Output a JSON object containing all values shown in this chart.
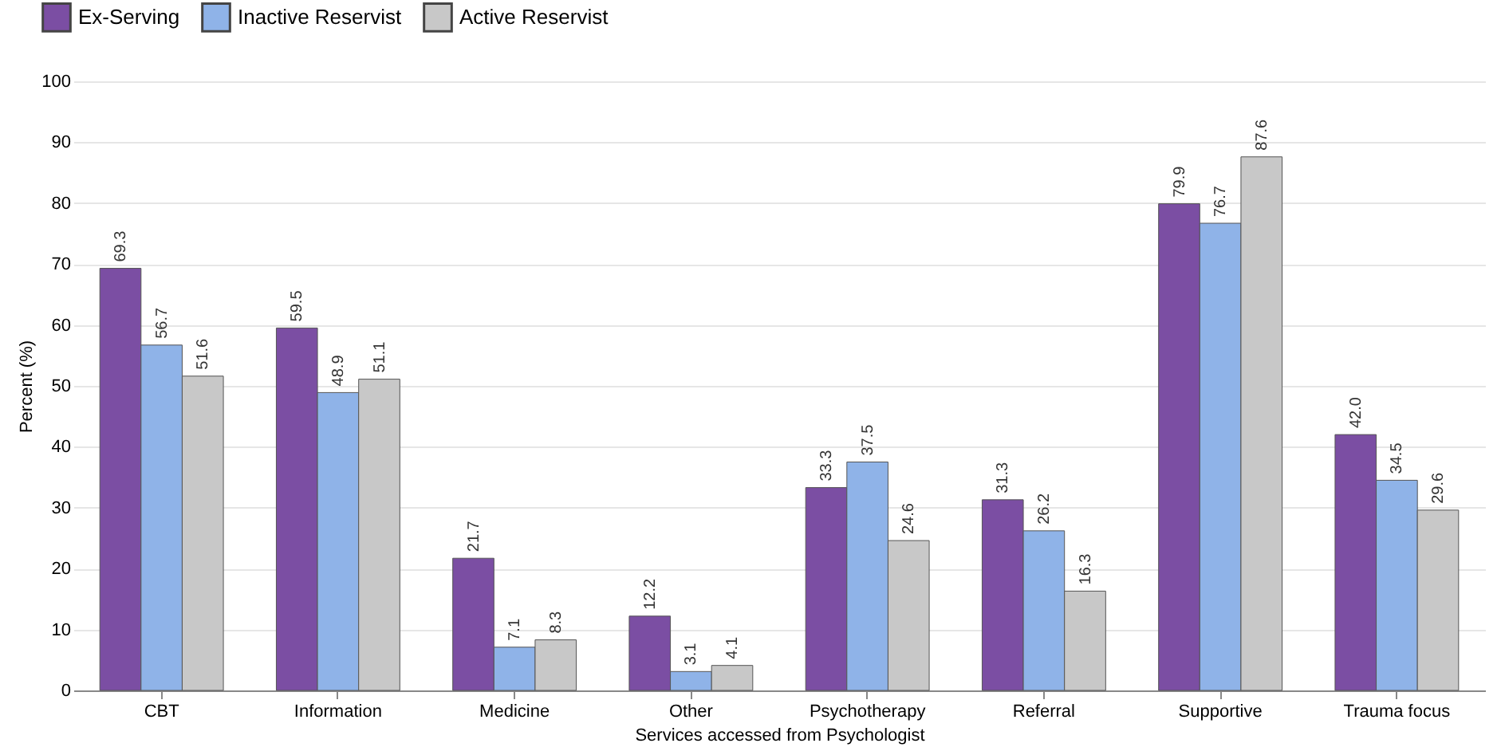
{
  "chart_data": {
    "type": "bar",
    "xlabel": "Services accessed from Psychologist",
    "ylabel": "Percent (%)",
    "categories": [
      "CBT",
      "Information",
      "Medicine",
      "Other",
      "Psychotherapy",
      "Referral",
      "Supportive",
      "Trauma focus"
    ],
    "series": [
      {
        "name": "Ex-Serving",
        "color": "#7b4ea3",
        "values": [
          69.3,
          59.5,
          21.7,
          12.2,
          33.3,
          31.3,
          79.9,
          42.0
        ],
        "value_labels": [
          "69.3",
          "59.5",
          "21.7",
          "12.2",
          "33.3",
          "31.3",
          "79.9",
          "42.0"
        ]
      },
      {
        "name": "Inactive Reservist",
        "color": "#8fb3e8",
        "values": [
          56.7,
          48.9,
          7.1,
          3.1,
          37.5,
          26.2,
          76.7,
          34.5
        ],
        "value_labels": [
          "56.7",
          "48.9",
          "7.1",
          "3.1",
          "37.5",
          "26.2",
          "76.7",
          "34.5"
        ]
      },
      {
        "name": "Active Reservist",
        "color": "#c8c8c8",
        "values": [
          51.6,
          51.1,
          8.3,
          4.1,
          24.6,
          16.3,
          87.6,
          29.6
        ],
        "value_labels": [
          "51.6",
          "51.1",
          "8.3",
          "4.1",
          "24.6",
          "16.3",
          "87.6",
          "29.6"
        ]
      }
    ],
    "ylim": [
      0,
      100
    ],
    "yticks": [
      0,
      10,
      20,
      30,
      40,
      50,
      60,
      70,
      80,
      90,
      100
    ],
    "grid": "y",
    "legend": "top left"
  }
}
